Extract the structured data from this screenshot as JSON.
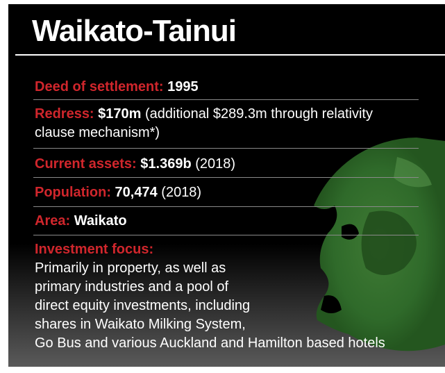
{
  "title": "Waikato-Tainui",
  "rows": [
    {
      "label": "Deed of settlement:",
      "value": "1995"
    },
    {
      "label": "Redress:",
      "value": "$170m",
      "note": "(additional $289.3m through relativity clause mechanism*)"
    },
    {
      "label": "Current assets:",
      "value": "$1.369b",
      "note": "(2018)"
    },
    {
      "label": "Population:",
      "value": "70,474",
      "note": "(2018)"
    },
    {
      "label": "Area:",
      "value": "Waikato"
    }
  ],
  "focus": {
    "label": "Investment focus:",
    "lines": [
      "Primarily in property, as well as",
      "primary industries and a pool of",
      "direct equity investments, including",
      "shares in Waikato Milking System,",
      "Go Bus and various Auckland and Hamilton based hotels"
    ]
  }
}
